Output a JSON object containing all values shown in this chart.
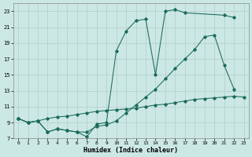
{
  "bg_color": "#cce8e4",
  "grid_color": "#b0ceca",
  "line_color": "#1a6b5a",
  "xlabel": "Humidex (Indice chaleur)",
  "xlim": [
    -0.5,
    23.5
  ],
  "ylim": [
    7,
    24
  ],
  "yticks": [
    7,
    9,
    11,
    13,
    15,
    17,
    19,
    21,
    23
  ],
  "xticks": [
    0,
    1,
    2,
    3,
    4,
    5,
    6,
    7,
    8,
    9,
    10,
    11,
    12,
    13,
    14,
    15,
    16,
    17,
    18,
    19,
    20,
    21,
    22,
    23
  ],
  "line1_x": [
    0,
    1,
    2,
    3,
    4,
    5,
    6,
    7,
    8,
    9,
    10,
    11,
    12,
    13,
    14,
    15,
    16,
    17,
    21,
    22
  ],
  "line1_y": [
    9.5,
    9.0,
    9.2,
    7.8,
    8.2,
    8.0,
    7.8,
    7.2,
    8.8,
    9.0,
    18.0,
    20.5,
    21.8,
    22.0,
    15.0,
    23.0,
    23.2,
    22.8,
    22.5,
    22.2
  ],
  "line2_x": [
    0,
    1,
    2,
    3,
    4,
    5,
    6,
    7,
    8,
    9,
    10,
    11,
    12,
    13,
    14,
    15,
    16,
    17,
    18,
    19,
    20,
    21,
    22
  ],
  "line2_y": [
    9.5,
    9.0,
    9.2,
    7.8,
    8.2,
    8.0,
    7.8,
    7.8,
    8.5,
    8.7,
    9.2,
    10.2,
    11.2,
    12.2,
    13.2,
    14.5,
    15.8,
    17.0,
    18.2,
    19.8,
    20.0,
    16.2,
    13.2
  ],
  "line3_x": [
    0,
    1,
    2,
    3,
    4,
    5,
    6,
    7,
    8,
    9,
    10,
    11,
    12,
    13,
    14,
    15,
    16,
    17,
    18,
    19,
    20,
    21,
    22,
    23
  ],
  "line3_y": [
    9.5,
    9.0,
    9.2,
    9.5,
    9.7,
    9.8,
    10.0,
    10.2,
    10.4,
    10.5,
    10.6,
    10.7,
    10.8,
    11.0,
    11.2,
    11.3,
    11.5,
    11.7,
    11.9,
    12.0,
    12.1,
    12.2,
    12.3,
    12.2
  ]
}
